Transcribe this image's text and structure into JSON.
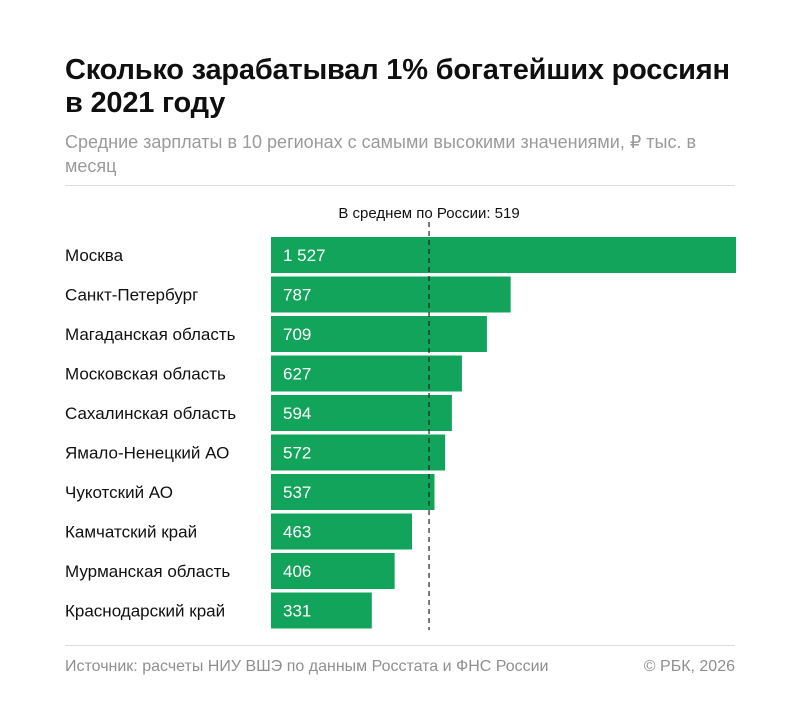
{
  "title": "Сколько зарабатывал 1% богатейших россиян в 2021 году",
  "subtitle": "Средние зарплаты в 10 регионах с самыми высокими значениями, ₽ тыс. в месяц",
  "source": "Источник: расчеты НИУ ВШЭ по данным Росстата и ФНС России",
  "copyright": "© РБК, 2026",
  "colors": {
    "bar": "#12a45a",
    "bar_label": "#ffffff",
    "reference_line": "#222222"
  },
  "chart_data": {
    "type": "bar",
    "orientation": "horizontal",
    "categories": [
      "Москва",
      "Санкт-Петербург",
      "Магаданская область",
      "Московская область",
      "Сахалинская область",
      "Ямало-Ненецкий АО",
      "Чукотский АО",
      "Камчатский край",
      "Мурманская область",
      "Краснодарский край"
    ],
    "values": [
      1527,
      787,
      709,
      627,
      594,
      572,
      537,
      463,
      406,
      331
    ],
    "value_labels": [
      "1 527",
      "787",
      "709",
      "627",
      "594",
      "572",
      "537",
      "463",
      "406",
      "331"
    ],
    "xlim": [
      0,
      1527
    ],
    "reference": {
      "value": 519,
      "label": "В среднем по России: 519",
      "style": "dashed"
    },
    "grid": false
  }
}
